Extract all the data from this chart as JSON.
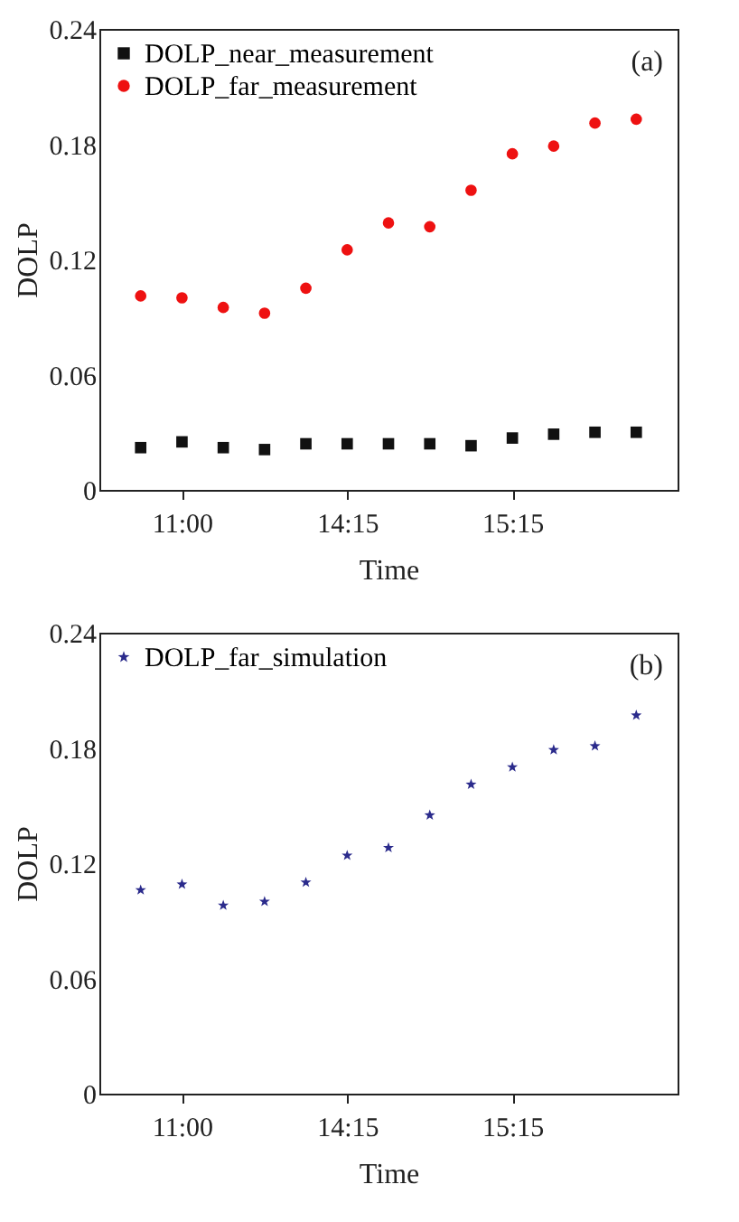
{
  "chart_data": [
    {
      "type": "scatter",
      "xlabel": "Time",
      "ylabel": "DOLP",
      "categories": [
        null,
        "11:00",
        null,
        null,
        null,
        "14:15",
        null,
        null,
        null,
        "15:15",
        null,
        null,
        null
      ],
      "ylim": [
        0,
        0.24
      ],
      "yticks": [
        0,
        0.06,
        0.12,
        0.18,
        0.24
      ],
      "grid": false,
      "legend": "top left",
      "annotations": [
        "(a)"
      ],
      "series": [
        {
          "name": "DOLP_near_measurement",
          "color": "#111111",
          "marker": "square",
          "values": [
            0.022,
            0.025,
            0.022,
            0.021,
            0.024,
            0.024,
            0.024,
            0.024,
            0.023,
            0.027,
            0.029,
            0.03,
            0.03
          ]
        },
        {
          "name": "DOLP_far_measurement",
          "color": "#ee1111",
          "marker": "circle",
          "values": [
            0.101,
            0.1,
            0.095,
            0.092,
            0.105,
            0.125,
            0.139,
            0.137,
            0.156,
            0.175,
            0.179,
            0.191,
            0.193
          ]
        }
      ]
    },
    {
      "type": "scatter",
      "xlabel": "Time",
      "ylabel": "DOLP",
      "categories": [
        null,
        "11:00",
        null,
        null,
        null,
        "14:15",
        null,
        null,
        null,
        "15:15",
        null,
        null,
        null
      ],
      "ylim": [
        0,
        0.24
      ],
      "yticks": [
        0,
        0.06,
        0.12,
        0.18,
        0.24
      ],
      "grid": false,
      "legend": "top left",
      "annotations": [
        "(b)"
      ],
      "series": [
        {
          "name": "DOLP_far_simulation",
          "color": "#2b2b8c",
          "marker": "star",
          "values": [
            0.106,
            0.109,
            0.098,
            0.1,
            0.11,
            0.124,
            0.128,
            0.145,
            0.161,
            0.17,
            0.179,
            0.181,
            0.197
          ]
        }
      ]
    }
  ]
}
